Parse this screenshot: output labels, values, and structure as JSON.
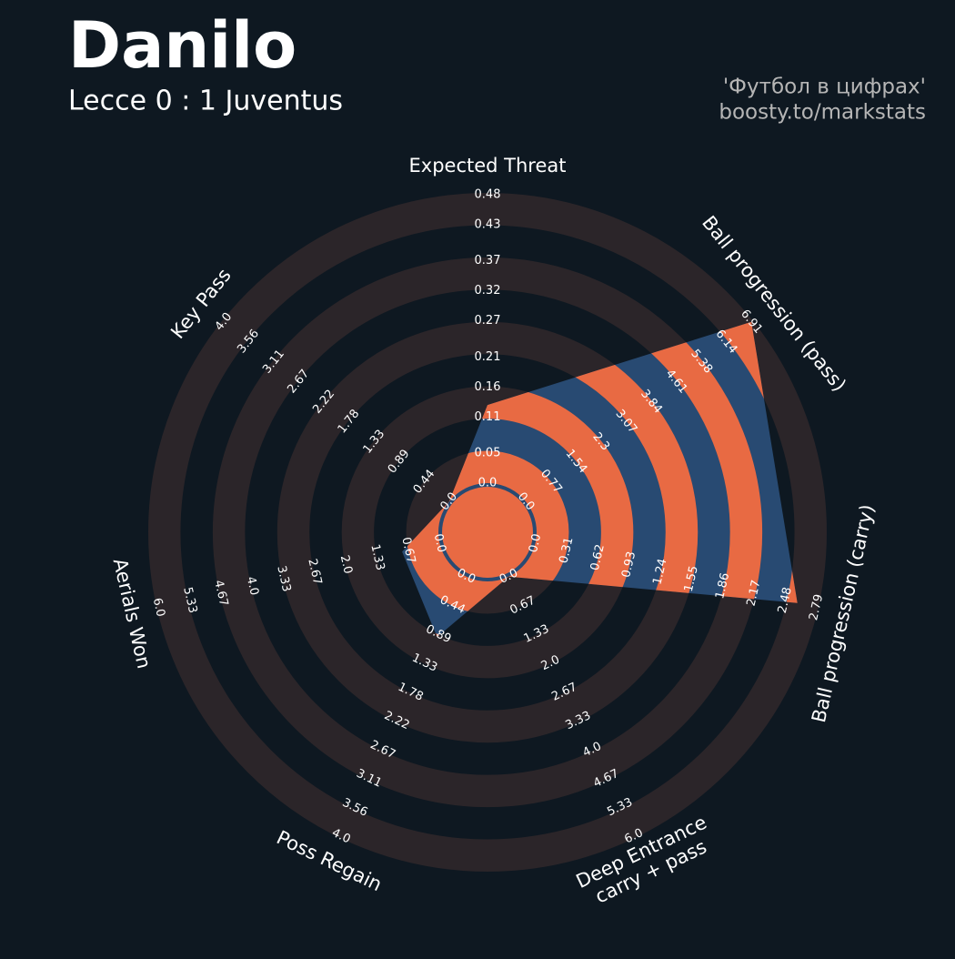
{
  "chart_data": {
    "type": "radar",
    "title": "Danilo",
    "subtitle": "Lecce 0 : 1 Juventus",
    "credits": [
      "'Футбол в цифрах'",
      "boosty.to/markstats"
    ],
    "categories": [
      "Expected Threat",
      "Ball progression (pass)",
      "Ball progression (carry)",
      [
        "Deep Entrance",
        "carry + pass"
      ],
      "Poss Regain",
      "Aerials Won",
      "Key Pass"
    ],
    "values": [
      0.13,
      6.91,
      2.6,
      0,
      0.93,
      0.8,
      0
    ],
    "axes": [
      {
        "lim": [
          0,
          0.48
        ],
        "ticks": [
          {
            "value": 0,
            "label": "0.0"
          },
          0.05,
          0.11,
          0.16,
          0.21,
          0.27,
          0.32,
          0.37,
          0.43,
          0.48
        ]
      },
      {
        "lim": [
          0,
          6.91
        ],
        "ticks": [
          {
            "value": 0,
            "label": "0.0"
          },
          0.77,
          1.54,
          2.3,
          3.07,
          3.84,
          4.61,
          5.38,
          6.14,
          6.91
        ]
      },
      {
        "lim": [
          0,
          2.79
        ],
        "ticks": [
          {
            "value": 0,
            "label": "0.0"
          },
          0.31,
          0.62,
          0.93,
          1.24,
          1.55,
          1.86,
          2.17,
          2.48,
          2.79
        ]
      },
      {
        "lim": [
          0,
          6
        ],
        "ticks": [
          {
            "value": 0,
            "label": "0.0"
          },
          0.67,
          1.33,
          {
            "value": 2,
            "label": "2.0"
          },
          2.67,
          3.33,
          {
            "value": 4,
            "label": "4.0"
          },
          4.67,
          5.33,
          {
            "value": 6,
            "label": "6.0"
          }
        ]
      },
      {
        "lim": [
          0,
          4
        ],
        "ticks": [
          {
            "value": 0,
            "label": "0.0"
          },
          0.44,
          0.89,
          1.33,
          1.78,
          2.22,
          2.67,
          3.11,
          3.56,
          {
            "value": 4,
            "label": "4.0"
          }
        ]
      },
      {
        "lim": [
          0,
          6
        ],
        "ticks": [
          {
            "value": 0,
            "label": "0.0"
          },
          0.67,
          1.33,
          {
            "value": 2,
            "label": "2.0"
          },
          2.67,
          3.33,
          {
            "value": 4,
            "label": "4.0"
          },
          4.67,
          5.33,
          {
            "value": 6,
            "label": "6.0"
          }
        ]
      },
      {
        "lim": [
          0,
          4
        ],
        "ticks": [
          {
            "value": 0,
            "label": "0.0"
          },
          0.44,
          0.89,
          1.33,
          1.78,
          2.22,
          2.67,
          3.11,
          3.56,
          {
            "value": 4,
            "label": "4.0"
          }
        ]
      }
    ],
    "background_color": "#0e1821",
    "ring_color": "#2b2529",
    "fill_color": "#284a72",
    "band_color": "#e86a43"
  }
}
